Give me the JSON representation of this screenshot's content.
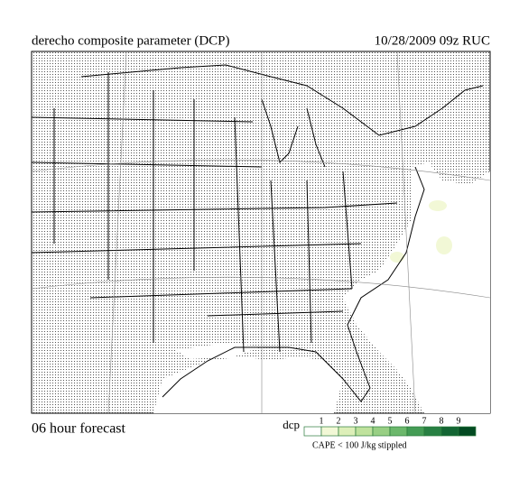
{
  "header": {
    "title": "derecho composite parameter (DCP)",
    "valid": "10/28/2009  09z  RUC"
  },
  "footer": {
    "forecast": "06 hour forecast",
    "note": "CAPE < 100 J/kg stippled"
  },
  "legend": {
    "label": "dcp",
    "ticks": [
      1,
      2,
      3,
      4,
      5,
      6,
      7,
      8,
      9
    ],
    "colors": [
      "#ffffff",
      "#f2f8d6",
      "#ddefb9",
      "#bfe29d",
      "#98cf84",
      "#6cb86c",
      "#449c55",
      "#288043",
      "#136533",
      "#034a22"
    ]
  }
}
